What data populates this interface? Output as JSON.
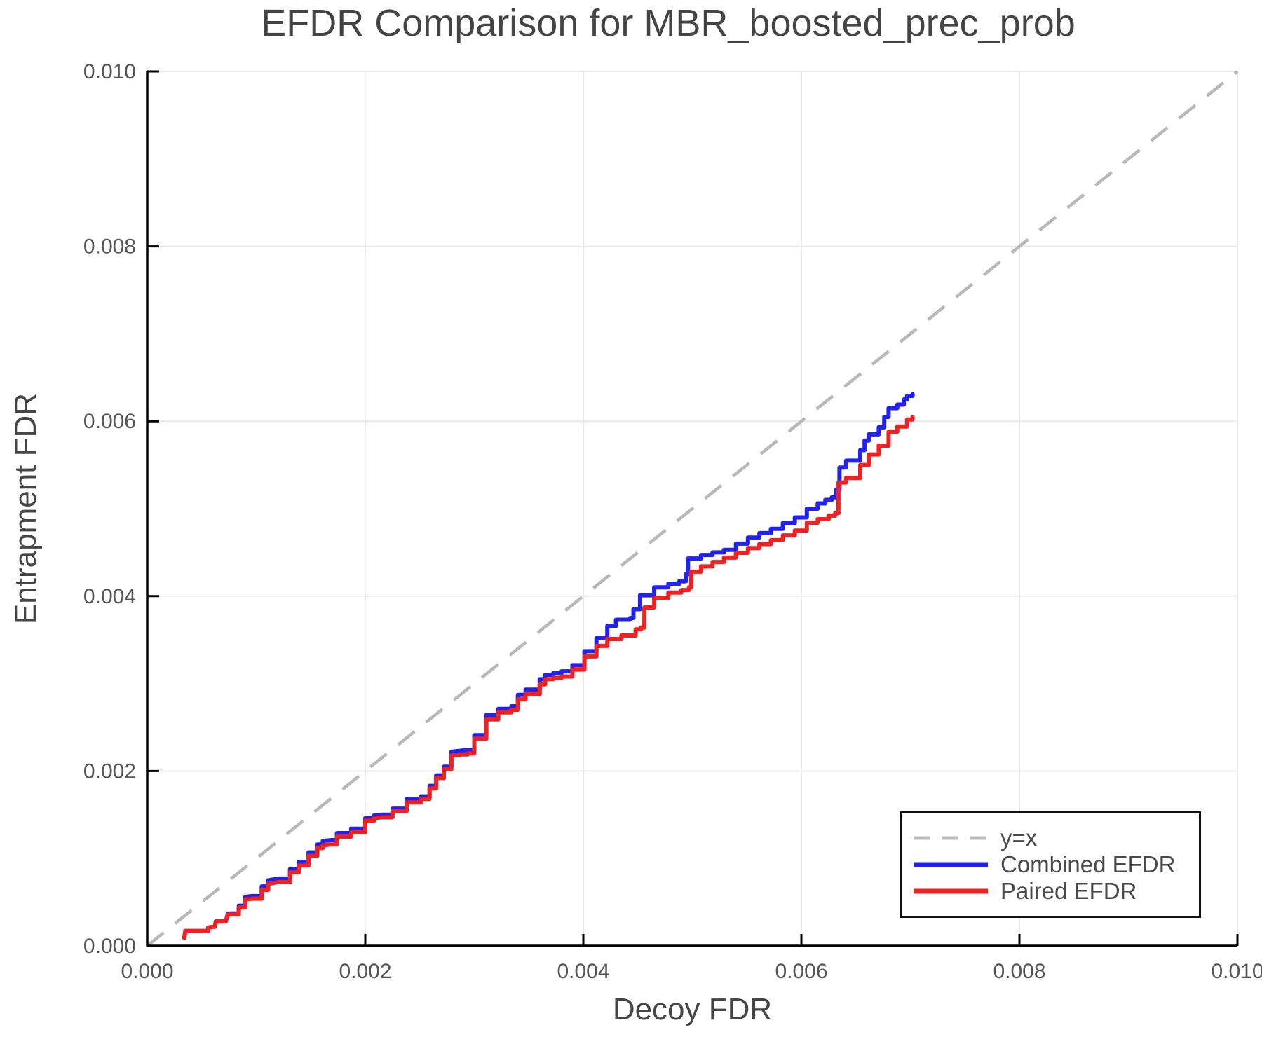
{
  "chart_data": {
    "type": "line",
    "title": "EFDR Comparison for MBR_boosted_prec_prob",
    "xlabel": "Decoy FDR",
    "ylabel": "Entrapment FDR",
    "xlim": [
      0.0,
      0.01
    ],
    "ylim": [
      0.0,
      0.01
    ],
    "grid": true,
    "legend_position": "bottom-right",
    "xticks": {
      "values": [
        0.0,
        0.002,
        0.004,
        0.006,
        0.008,
        0.01
      ],
      "labels": [
        "0.000",
        "0.002",
        "0.004",
        "0.006",
        "0.008",
        "0.010"
      ]
    },
    "yticks": {
      "values": [
        0.0,
        0.002,
        0.004,
        0.006,
        0.008,
        0.01
      ],
      "labels": [
        "0.000",
        "0.002",
        "0.004",
        "0.006",
        "0.008",
        "0.010"
      ]
    },
    "reference_line": {
      "name": "y=x",
      "from": [
        0.0,
        0.0
      ],
      "to": [
        0.01,
        0.01
      ],
      "style": "dashed",
      "color": "#b8b8b8"
    },
    "series": [
      {
        "name": "Combined EFDR",
        "color": "#2222ee",
        "points": [
          [
            0.00034,
            9e-05
          ],
          [
            0.00035,
            0.00017
          ],
          [
            0.00053,
            0.00017
          ],
          [
            0.00056,
            0.00021
          ],
          [
            0.00062,
            0.00022
          ],
          [
            0.00063,
            0.00028
          ],
          [
            0.00072,
            0.00028
          ],
          [
            0.00074,
            0.00037
          ],
          [
            0.00084,
            0.00046
          ],
          [
            0.0009,
            0.00056
          ],
          [
            0.00096,
            0.00057
          ],
          [
            0.00105,
            0.00068
          ],
          [
            0.00111,
            0.00075
          ],
          [
            0.0012,
            0.00077
          ],
          [
            0.00131,
            0.00088
          ],
          [
            0.00139,
            0.00096
          ],
          [
            0.00148,
            0.00107
          ],
          [
            0.00156,
            0.00116
          ],
          [
            0.00161,
            0.0012
          ],
          [
            0.00169,
            0.00121
          ],
          [
            0.00174,
            0.00129
          ],
          [
            0.00187,
            0.00134
          ],
          [
            0.002,
            0.00146
          ],
          [
            0.00208,
            0.00149
          ],
          [
            0.00215,
            0.0015
          ],
          [
            0.00225,
            0.00157
          ],
          [
            0.00238,
            0.00168
          ],
          [
            0.00251,
            0.00171
          ],
          [
            0.00259,
            0.00183
          ],
          [
            0.00265,
            0.00195
          ],
          [
            0.00272,
            0.00205
          ],
          [
            0.00279,
            0.00222
          ],
          [
            0.00294,
            0.00224
          ],
          [
            0.003,
            0.00241
          ],
          [
            0.00311,
            0.00264
          ],
          [
            0.00322,
            0.00271
          ],
          [
            0.00334,
            0.00274
          ],
          [
            0.0034,
            0.00287
          ],
          [
            0.00347,
            0.00293
          ],
          [
            0.0036,
            0.00305
          ],
          [
            0.00365,
            0.0031
          ],
          [
            0.0038,
            0.00314
          ],
          [
            0.0039,
            0.00321
          ],
          [
            0.00401,
            0.00337
          ],
          [
            0.00412,
            0.00352
          ],
          [
            0.00422,
            0.00366
          ],
          [
            0.0043,
            0.00373
          ],
          [
            0.00443,
            0.00375
          ],
          [
            0.00446,
            0.00385
          ],
          [
            0.00452,
            0.00401
          ],
          [
            0.00465,
            0.0041
          ],
          [
            0.00478,
            0.00414
          ],
          [
            0.00488,
            0.00417
          ],
          [
            0.00494,
            0.00425
          ],
          [
            0.00496,
            0.00443
          ],
          [
            0.00508,
            0.00447
          ],
          [
            0.00529,
            0.00453
          ],
          [
            0.00551,
            0.00467
          ],
          [
            0.00572,
            0.00477
          ],
          [
            0.00594,
            0.0049
          ],
          [
            0.00605,
            0.005
          ],
          [
            0.00615,
            0.00506
          ],
          [
            0.00622,
            0.0051
          ],
          [
            0.00628,
            0.00513
          ],
          [
            0.00632,
            0.00522
          ],
          [
            0.00635,
            0.00547
          ],
          [
            0.00641,
            0.00555
          ],
          [
            0.00654,
            0.00567
          ],
          [
            0.00658,
            0.00578
          ],
          [
            0.00662,
            0.00585
          ],
          [
            0.00671,
            0.00593
          ],
          [
            0.00676,
            0.00605
          ],
          [
            0.0068,
            0.00615
          ],
          [
            0.00688,
            0.00619
          ],
          [
            0.00694,
            0.00625
          ],
          [
            0.00697,
            0.00629
          ],
          [
            0.00702,
            0.00631
          ]
        ]
      },
      {
        "name": "Paired EFDR",
        "color": "#ee2222",
        "points": [
          [
            0.00034,
            9e-05
          ],
          [
            0.00035,
            0.00017
          ],
          [
            0.00053,
            0.00017
          ],
          [
            0.00056,
            0.00021
          ],
          [
            0.00062,
            0.00022
          ],
          [
            0.00063,
            0.00028
          ],
          [
            0.00072,
            0.00028
          ],
          [
            0.00074,
            0.00036
          ],
          [
            0.00084,
            0.00044
          ],
          [
            0.0009,
            0.00053
          ],
          [
            0.00096,
            0.00054
          ],
          [
            0.00105,
            0.00064
          ],
          [
            0.00111,
            0.00071
          ],
          [
            0.0012,
            0.00073
          ],
          [
            0.00131,
            0.00084
          ],
          [
            0.00139,
            0.00092
          ],
          [
            0.00148,
            0.00103
          ],
          [
            0.00156,
            0.00112
          ],
          [
            0.00161,
            0.00115
          ],
          [
            0.00169,
            0.00116
          ],
          [
            0.00174,
            0.00125
          ],
          [
            0.00187,
            0.0013
          ],
          [
            0.002,
            0.00143
          ],
          [
            0.00208,
            0.00146
          ],
          [
            0.00215,
            0.00147
          ],
          [
            0.00225,
            0.00154
          ],
          [
            0.00238,
            0.00164
          ],
          [
            0.00251,
            0.00168
          ],
          [
            0.00259,
            0.0018
          ],
          [
            0.00265,
            0.00192
          ],
          [
            0.00272,
            0.00202
          ],
          [
            0.00279,
            0.00218
          ],
          [
            0.00294,
            0.0022
          ],
          [
            0.003,
            0.00237
          ],
          [
            0.00311,
            0.00259
          ],
          [
            0.00322,
            0.00267
          ],
          [
            0.00334,
            0.0027
          ],
          [
            0.0034,
            0.00282
          ],
          [
            0.00347,
            0.00288
          ],
          [
            0.0036,
            0.00299
          ],
          [
            0.00365,
            0.00305
          ],
          [
            0.0038,
            0.00308
          ],
          [
            0.0039,
            0.00316
          ],
          [
            0.00401,
            0.00331
          ],
          [
            0.00412,
            0.00343
          ],
          [
            0.00422,
            0.00351
          ],
          [
            0.00435,
            0.00355
          ],
          [
            0.00448,
            0.00362
          ],
          [
            0.00453,
            0.00364
          ],
          [
            0.00456,
            0.00387
          ],
          [
            0.00465,
            0.00398
          ],
          [
            0.00478,
            0.00404
          ],
          [
            0.0049,
            0.00407
          ],
          [
            0.00497,
            0.0041
          ],
          [
            0.00499,
            0.00428
          ],
          [
            0.00508,
            0.00434
          ],
          [
            0.00529,
            0.00444
          ],
          [
            0.00551,
            0.00455
          ],
          [
            0.00572,
            0.00464
          ],
          [
            0.00594,
            0.00475
          ],
          [
            0.00605,
            0.00484
          ],
          [
            0.00615,
            0.00488
          ],
          [
            0.00625,
            0.00492
          ],
          [
            0.00631,
            0.00495
          ],
          [
            0.00634,
            0.0053
          ],
          [
            0.00641,
            0.00535
          ],
          [
            0.00654,
            0.0055
          ],
          [
            0.00662,
            0.00562
          ],
          [
            0.00671,
            0.00572
          ],
          [
            0.0068,
            0.00588
          ],
          [
            0.00688,
            0.00594
          ],
          [
            0.00697,
            0.00602
          ],
          [
            0.00702,
            0.00605
          ]
        ]
      }
    ]
  },
  "legend": {
    "entries": [
      {
        "label": "y=x",
        "color": "#b8b8b8",
        "dashed": true
      },
      {
        "label": "Combined EFDR",
        "color": "#2222ee",
        "dashed": false
      },
      {
        "label": "Paired EFDR",
        "color": "#ee2222",
        "dashed": false
      }
    ]
  },
  "colors": {
    "grid": "#e9e9e9",
    "spine": "#000000",
    "tick_label": "#555555",
    "title_text": "#444444",
    "axis_label_text": "#454545",
    "background": "#ffffff"
  }
}
